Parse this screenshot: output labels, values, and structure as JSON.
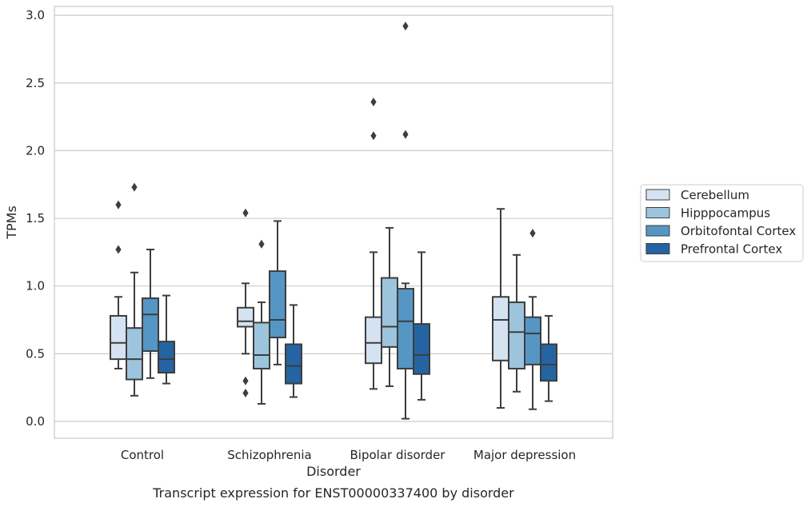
{
  "chart_data": {
    "type": "box",
    "caption": "Transcript expression for ENST00000337400 by disorder",
    "xlabel": "Disorder",
    "ylabel": "TPMs",
    "ylim": [
      -0.12,
      3.07
    ],
    "yticks": [
      0.0,
      0.5,
      1.0,
      1.5,
      2.0,
      2.5,
      3.0
    ],
    "ytick_labels": [
      "0.0",
      "0.5",
      "1.0",
      "1.5",
      "2.0",
      "2.5",
      "3.0"
    ],
    "categories": [
      "Control",
      "Schizophrenia",
      "Bipolar disorder",
      "Major depression"
    ],
    "grid": "horizontal",
    "legend_placement": "right, outside plot area",
    "series": [
      {
        "name": "Cerebellum",
        "color": "#d4e2f1",
        "boxes": [
          {
            "min": 0.39,
            "q1": 0.46,
            "median": 0.58,
            "q3": 0.78,
            "max": 0.92,
            "outliers": [
              1.27,
              1.6
            ]
          },
          {
            "min": 0.5,
            "q1": 0.7,
            "median": 0.74,
            "q3": 0.84,
            "max": 1.02,
            "outliers": [
              1.54,
              0.3,
              0.21
            ]
          },
          {
            "min": 0.24,
            "q1": 0.43,
            "median": 0.58,
            "q3": 0.77,
            "max": 1.25,
            "outliers": [
              2.11,
              2.36
            ]
          },
          {
            "min": 0.1,
            "q1": 0.45,
            "median": 0.75,
            "q3": 0.92,
            "max": 1.57,
            "outliers": []
          }
        ]
      },
      {
        "name": "Hipppocampus",
        "color": "#9dc4dd",
        "boxes": [
          {
            "min": 0.19,
            "q1": 0.31,
            "median": 0.46,
            "q3": 0.69,
            "max": 1.1,
            "outliers": [
              1.73
            ]
          },
          {
            "min": 0.13,
            "q1": 0.39,
            "median": 0.49,
            "q3": 0.73,
            "max": 0.88,
            "outliers": [
              1.31
            ]
          },
          {
            "min": 0.26,
            "q1": 0.55,
            "median": 0.7,
            "q3": 1.06,
            "max": 1.43,
            "outliers": []
          },
          {
            "min": 0.22,
            "q1": 0.39,
            "median": 0.66,
            "q3": 0.88,
            "max": 1.23,
            "outliers": []
          }
        ]
      },
      {
        "name": "Orbitofontal Cortex",
        "color": "#5596c5",
        "boxes": [
          {
            "min": 0.32,
            "q1": 0.52,
            "median": 0.79,
            "q3": 0.91,
            "max": 1.27,
            "outliers": []
          },
          {
            "min": 0.42,
            "q1": 0.62,
            "median": 0.75,
            "q3": 1.11,
            "max": 1.48,
            "outliers": []
          },
          {
            "min": 0.02,
            "q1": 0.39,
            "median": 0.74,
            "q3": 0.98,
            "max": 1.02,
            "outliers": [
              2.12,
              2.92
            ]
          },
          {
            "min": 0.09,
            "q1": 0.42,
            "median": 0.65,
            "q3": 0.77,
            "max": 0.92,
            "outliers": [
              1.39
            ]
          }
        ]
      },
      {
        "name": "Prefrontal Cortex",
        "color": "#2464a3",
        "boxes": [
          {
            "min": 0.28,
            "q1": 0.36,
            "median": 0.46,
            "q3": 0.59,
            "max": 0.93,
            "outliers": []
          },
          {
            "min": 0.18,
            "q1": 0.28,
            "median": 0.41,
            "q3": 0.57,
            "max": 0.86,
            "outliers": []
          },
          {
            "min": 0.16,
            "q1": 0.35,
            "median": 0.49,
            "q3": 0.72,
            "max": 1.25,
            "outliers": []
          },
          {
            "min": 0.15,
            "q1": 0.3,
            "median": 0.42,
            "q3": 0.57,
            "max": 0.78,
            "outliers": []
          }
        ]
      }
    ]
  }
}
